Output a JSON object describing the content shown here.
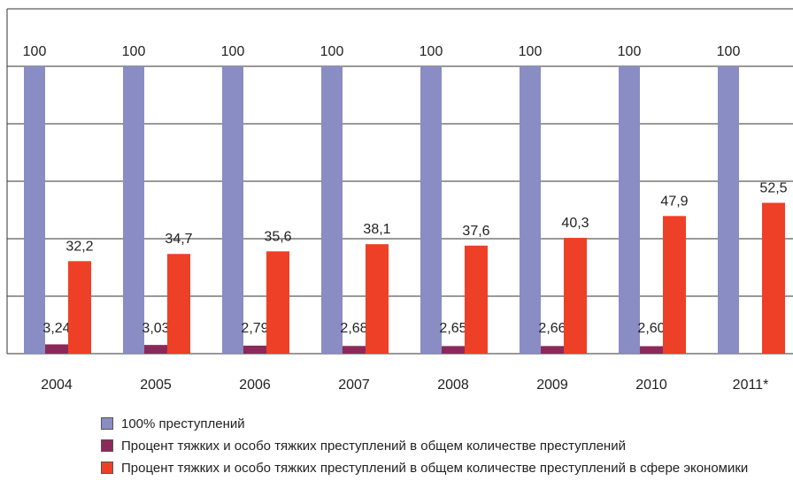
{
  "chart_data": {
    "type": "bar",
    "categories": [
      "2004",
      "2005",
      "2006",
      "2007",
      "2008",
      "2009",
      "2010",
      "2011*"
    ],
    "series": [
      {
        "name": "100% преступлений",
        "color": "#8a8cc4",
        "values": [
          100,
          100,
          100,
          100,
          100,
          100,
          100,
          100
        ]
      },
      {
        "name": "Процент тяжких и особо тяжких преступлений в общем количестве преступлений",
        "color": "#8b2a5a",
        "values": [
          3.24,
          3.03,
          2.79,
          2.68,
          2.65,
          2.66,
          2.6,
          null
        ],
        "value_labels": [
          "3,24",
          "3,03",
          "2,79",
          "2,68",
          "2,65",
          "2,66",
          "2,60",
          null
        ]
      },
      {
        "name": "Процент тяжких и особо тяжких преступлений в общем количестве преступлений в сфере экономики",
        "color": "#ee4027",
        "values": [
          32.2,
          34.7,
          35.6,
          38.1,
          37.6,
          40.3,
          47.9,
          52.5
        ],
        "value_labels": [
          "32,2",
          "34,7",
          "35,6",
          "38,1",
          "37,6",
          "40,3",
          "47,9",
          "52,5"
        ]
      }
    ],
    "ylim": [
      0,
      120
    ],
    "yticks": [
      0,
      20,
      40,
      60,
      80,
      100,
      120
    ],
    "grid": true
  }
}
